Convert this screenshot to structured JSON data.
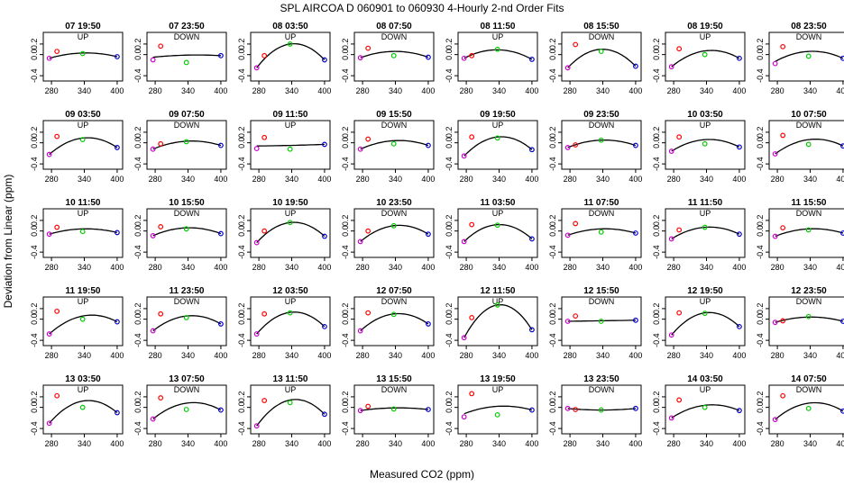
{
  "title": "SPL   AIRCOA D   060901 to 060930   4-Hourly 2-nd Order Fits",
  "xlabel": "Measured CO2 (ppm)",
  "ylabel": "Deviation from Linear (ppm)",
  "colors": {
    "curve": "#000000",
    "p280": "#cc00cc",
    "p290": "#ff0000",
    "p340": "#00cc00",
    "p400": "#0000cc"
  },
  "chart_data": {
    "type": "scatter",
    "layout": "small-multiples 5x8",
    "xlim": [
      265,
      410
    ],
    "ylim": [
      -0.5,
      0.42
    ],
    "xticks": [
      280,
      340,
      400
    ],
    "yticks": [
      -0.4,
      0.0,
      0.2
    ],
    "panels": [
      {
        "title": "07 19:50",
        "dir": "UP",
        "y": [
          -0.07,
          0.06,
          0.02,
          -0.04
        ],
        "curve": [
          -0.07,
          0.03,
          -0.04
        ]
      },
      {
        "title": "07 23:50",
        "dir": "DOWN",
        "y": [
          -0.1,
          0.16,
          -0.15,
          -0.02
        ],
        "curve": [
          -0.05,
          -0.01,
          -0.02
        ]
      },
      {
        "title": "08 03:50",
        "dir": "UP",
        "y": [
          -0.25,
          -0.02,
          0.2,
          -0.1
        ],
        "curve": [
          -0.25,
          0.2,
          -0.1
        ]
      },
      {
        "title": "08 07:50",
        "dir": "DOWN",
        "y": [
          -0.06,
          0.12,
          -0.02,
          -0.05
        ],
        "curve": [
          -0.06,
          0.06,
          -0.05
        ]
      },
      {
        "title": "08 11:50",
        "dir": "UP",
        "y": [
          -0.07,
          -0.02,
          0.1,
          -0.09
        ],
        "curve": [
          -0.07,
          0.09,
          -0.09
        ]
      },
      {
        "title": "08 15:50",
        "dir": "DOWN",
        "y": [
          -0.25,
          0.19,
          0.06,
          -0.22
        ],
        "curve": [
          -0.25,
          0.1,
          -0.22
        ]
      },
      {
        "title": "08 19:50",
        "dir": "UP",
        "y": [
          -0.23,
          0.11,
          0.0,
          -0.07
        ],
        "curve": [
          -0.23,
          0.07,
          -0.07
        ]
      },
      {
        "title": "08 23:50",
        "dir": "DOWN",
        "y": [
          -0.17,
          0.15,
          -0.03,
          -0.07
        ],
        "curve": [
          -0.13,
          0.06,
          -0.07
        ]
      },
      {
        "title": "09 03:50",
        "dir": "UP",
        "y": [
          -0.22,
          0.12,
          0.06,
          -0.09
        ],
        "curve": [
          -0.22,
          0.09,
          -0.09
        ]
      },
      {
        "title": "09 07:50",
        "dir": "DOWN",
        "y": [
          -0.12,
          -0.02,
          0.02,
          -0.05
        ],
        "curve": [
          -0.12,
          0.03,
          -0.05
        ]
      },
      {
        "title": "09 11:50",
        "dir": "UP",
        "y": [
          -0.11,
          0.1,
          -0.12,
          -0.03
        ],
        "curve": [
          -0.06,
          -0.05,
          -0.03
        ]
      },
      {
        "title": "09 15:50",
        "dir": "DOWN",
        "y": [
          -0.12,
          0.07,
          -0.02,
          -0.05
        ],
        "curve": [
          -0.12,
          0.04,
          -0.05
        ]
      },
      {
        "title": "09 19:50",
        "dir": "UP",
        "y": [
          -0.25,
          0.11,
          0.09,
          -0.13
        ],
        "curve": [
          -0.25,
          0.11,
          -0.13
        ]
      },
      {
        "title": "09 23:50",
        "dir": "DOWN",
        "y": [
          -0.09,
          -0.04,
          0.05,
          -0.05
        ],
        "curve": [
          -0.09,
          0.05,
          -0.05
        ]
      },
      {
        "title": "10 03:50",
        "dir": "UP",
        "y": [
          -0.16,
          0.11,
          -0.02,
          -0.08
        ],
        "curve": [
          -0.16,
          0.06,
          -0.08
        ]
      },
      {
        "title": "10 07:50",
        "dir": "DOWN",
        "y": [
          -0.21,
          0.14,
          -0.03,
          -0.06
        ],
        "curve": [
          -0.21,
          0.06,
          -0.06
        ]
      },
      {
        "title": "10 11:50",
        "dir": "UP",
        "y": [
          -0.06,
          0.07,
          -0.01,
          -0.03
        ],
        "curve": [
          -0.06,
          0.04,
          -0.03
        ]
      },
      {
        "title": "10 15:50",
        "dir": "DOWN",
        "y": [
          -0.09,
          0.08,
          0.04,
          -0.05
        ],
        "curve": [
          -0.09,
          0.06,
          -0.05
        ]
      },
      {
        "title": "10 19:50",
        "dir": "UP",
        "y": [
          -0.22,
          0.0,
          0.16,
          -0.1
        ],
        "curve": [
          -0.22,
          0.16,
          -0.1
        ]
      },
      {
        "title": "10 23:50",
        "dir": "DOWN",
        "y": [
          -0.2,
          0.0,
          0.1,
          -0.06
        ],
        "curve": [
          -0.2,
          0.1,
          -0.06
        ]
      },
      {
        "title": "11 03:50",
        "dir": "UP",
        "y": [
          -0.2,
          0.12,
          0.11,
          -0.15
        ],
        "curve": [
          -0.2,
          0.12,
          -0.15
        ]
      },
      {
        "title": "11 07:50",
        "dir": "DOWN",
        "y": [
          -0.08,
          0.14,
          -0.02,
          -0.04
        ],
        "curve": [
          -0.08,
          0.04,
          -0.04
        ]
      },
      {
        "title": "11 11:50",
        "dir": "UP",
        "y": [
          -0.15,
          0.02,
          0.07,
          -0.06
        ],
        "curve": [
          -0.15,
          0.07,
          -0.06
        ]
      },
      {
        "title": "11 15:50",
        "dir": "DOWN",
        "y": [
          -0.1,
          0.06,
          0.02,
          -0.04
        ],
        "curve": [
          -0.1,
          0.04,
          -0.04
        ]
      },
      {
        "title": "11 19:50",
        "dir": "UP",
        "y": [
          -0.28,
          0.15,
          0.0,
          -0.05
        ],
        "curve": [
          -0.28,
          0.06,
          -0.05
        ]
      },
      {
        "title": "11 23:50",
        "dir": "DOWN",
        "y": [
          -0.22,
          0.1,
          0.03,
          -0.09
        ],
        "curve": [
          -0.22,
          0.06,
          -0.09
        ]
      },
      {
        "title": "12 03:50",
        "dir": "UP",
        "y": [
          -0.28,
          0.1,
          0.12,
          -0.14
        ],
        "curve": [
          -0.28,
          0.13,
          -0.14
        ]
      },
      {
        "title": "12 07:50",
        "dir": "DOWN",
        "y": [
          -0.22,
          0.12,
          0.09,
          -0.09
        ],
        "curve": [
          -0.22,
          0.1,
          -0.09
        ]
      },
      {
        "title": "12 11:50",
        "dir": "UP",
        "y": [
          -0.35,
          0.03,
          0.27,
          -0.2
        ],
        "curve": [
          -0.35,
          0.27,
          -0.2
        ]
      },
      {
        "title": "12 15:50",
        "dir": "DOWN",
        "y": [
          -0.04,
          0.06,
          -0.04,
          -0.02
        ],
        "curve": [
          -0.04,
          -0.03,
          -0.02
        ]
      },
      {
        "title": "12 19:50",
        "dir": "UP",
        "y": [
          -0.3,
          0.12,
          0.11,
          -0.14
        ],
        "curve": [
          -0.3,
          0.12,
          -0.14
        ]
      },
      {
        "title": "12 23:50",
        "dir": "DOWN",
        "y": [
          -0.06,
          -0.03,
          0.05,
          -0.04
        ],
        "curve": [
          -0.06,
          0.04,
          -0.04
        ]
      },
      {
        "title": "13 03:50",
        "dir": "UP",
        "y": [
          -0.3,
          0.22,
          0.0,
          -0.1
        ],
        "curve": [
          -0.3,
          0.12,
          -0.1
        ]
      },
      {
        "title": "13 07:50",
        "dir": "DOWN",
        "y": [
          -0.22,
          0.18,
          -0.04,
          -0.05
        ],
        "curve": [
          -0.22,
          0.08,
          -0.05
        ]
      },
      {
        "title": "13 11:50",
        "dir": "UP",
        "y": [
          -0.35,
          0.13,
          0.09,
          -0.13
        ],
        "curve": [
          -0.35,
          0.14,
          -0.13
        ]
      },
      {
        "title": "13 15:50",
        "dir": "DOWN",
        "y": [
          -0.06,
          0.02,
          -0.03,
          -0.04
        ],
        "curve": [
          -0.06,
          -0.01,
          -0.04
        ]
      },
      {
        "title": "13 19:50",
        "dir": "UP",
        "y": [
          -0.18,
          0.26,
          -0.14,
          -0.05
        ],
        "curve": [
          -0.12,
          0.02,
          -0.05
        ]
      },
      {
        "title": "13 23:50",
        "dir": "DOWN",
        "y": [
          -0.02,
          -0.04,
          -0.05,
          -0.02
        ],
        "curve": [
          -0.02,
          -0.05,
          -0.02
        ]
      },
      {
        "title": "14 03:50",
        "dir": "UP",
        "y": [
          -0.2,
          0.14,
          0.0,
          -0.06
        ],
        "curve": [
          -0.2,
          0.04,
          -0.06
        ]
      },
      {
        "title": "14 07:50",
        "dir": "DOWN",
        "y": [
          -0.23,
          0.22,
          -0.02,
          -0.07
        ],
        "curve": [
          -0.23,
          0.08,
          -0.07
        ]
      }
    ]
  }
}
